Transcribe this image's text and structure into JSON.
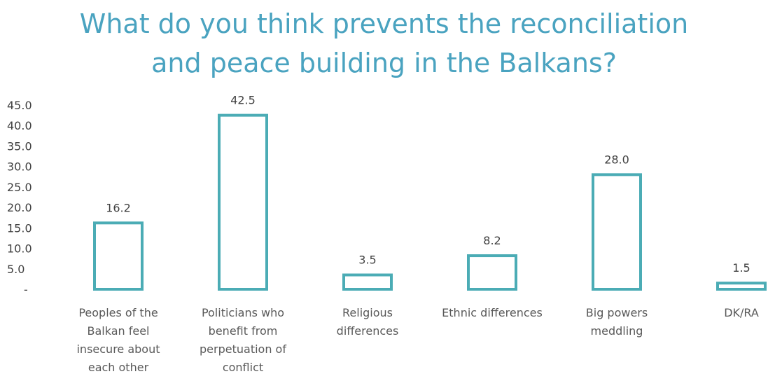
{
  "chart_data": {
    "type": "bar",
    "title": "What do you think prevents the reconciliation and peace building in the Balkans?",
    "title_lines": [
      "What do you think prevents the reconciliation",
      "and peace building in the Balkans?"
    ],
    "categories": [
      "Peoples of the Balkan feel insecure about each other",
      "Politicians who benefit from perpetuation of conflict",
      "Religious differences",
      "Ethnic differences",
      "Big powers meddling",
      "DK/RA"
    ],
    "category_lines": [
      [
        "Peoples of the",
        "Balkan feel",
        "insecure about",
        "each other"
      ],
      [
        "Politicians who",
        "benefit from",
        "perpetuation of",
        "conflict"
      ],
      [
        "Religious",
        "differences"
      ],
      [
        "Ethnic differences"
      ],
      [
        "Big powers",
        "meddling"
      ],
      [
        "DK/RA"
      ]
    ],
    "values": [
      16.2,
      42.5,
      3.5,
      8.2,
      28.0,
      1.5
    ],
    "value_labels": [
      "16.2",
      "42.5",
      "3.5",
      "8.2",
      "28.0",
      "1.5"
    ],
    "ylim": [
      0,
      45
    ],
    "yticks": [
      0,
      5,
      10,
      15,
      20,
      25,
      30,
      35,
      40,
      45
    ],
    "ytick_labels": [
      "-",
      "5.0",
      "10.0",
      "15.0",
      "20.0",
      "25.0",
      "30.0",
      "35.0",
      "40.0",
      "45.0"
    ],
    "xlabel": "",
    "ylabel": "",
    "grid": false,
    "legend": "none",
    "colors": {
      "title": "#4AA3C0",
      "bar_outline": "#4BACB5",
      "text": "#404040"
    }
  }
}
